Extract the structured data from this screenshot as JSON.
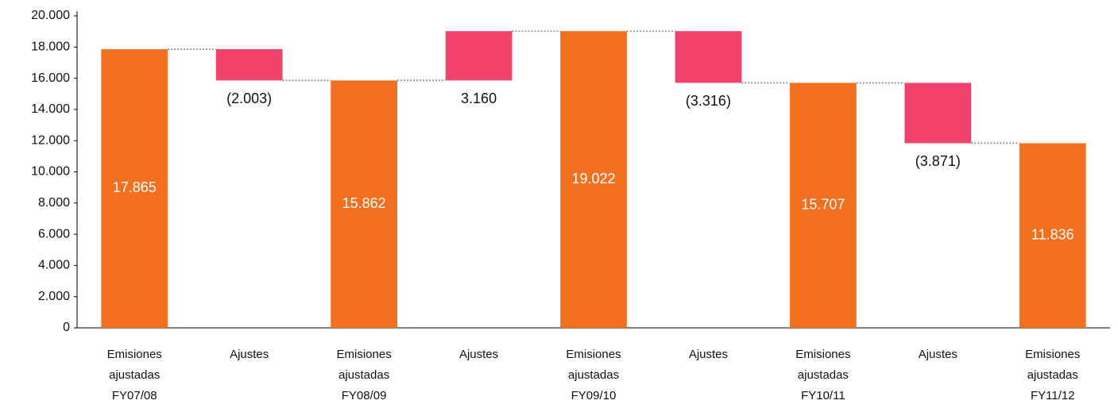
{
  "chart_data": {
    "type": "waterfall",
    "categories": [
      [
        "Emisiones",
        "ajustadas",
        "FY07/08"
      ],
      [
        "Ajustes"
      ],
      [
        "Emisiones",
        "ajustadas",
        "FY08/09"
      ],
      [
        "Ajustes"
      ],
      [
        "Emisiones",
        "ajustadas",
        "FY09/10"
      ],
      [
        "Ajustes"
      ],
      [
        "Emisiones",
        "ajustadas",
        "FY10/11"
      ],
      [
        "Ajustes"
      ],
      [
        "Emisiones",
        "ajustadas",
        "FY11/12"
      ]
    ],
    "values": [
      17865,
      -2003,
      15862,
      3160,
      19022,
      -3316,
      15707,
      -3871,
      11836
    ],
    "value_labels": [
      "17.865",
      "(2.003)",
      "15.862",
      "3.160",
      "19.022",
      "(3.316)",
      "15.707",
      "(3.871)",
      "11.836"
    ],
    "bar_kinds": [
      "total",
      "change",
      "total",
      "change",
      "total",
      "change",
      "total",
      "change",
      "total"
    ],
    "colors": {
      "total": "#f37021",
      "change": "#f0426a"
    },
    "ylim": [
      0,
      20000
    ],
    "yticks": [
      0,
      {
        "value": 2000,
        "label": "2.000"
      },
      {
        "value": 4000,
        "label": "4.000"
      },
      {
        "value": 6000,
        "label": "6.000"
      },
      {
        "value": 8000,
        "label": "8.000"
      },
      {
        "value": 10000,
        "label": "10.000"
      },
      {
        "value": 12000,
        "label": "12.000"
      },
      {
        "value": 14000,
        "label": "14.000"
      },
      {
        "value": 16000,
        "label": "16.000"
      },
      {
        "value": 18000,
        "label": "18.000"
      },
      {
        "value": 20000,
        "label": "20.000"
      }
    ],
    "grid": false
  }
}
